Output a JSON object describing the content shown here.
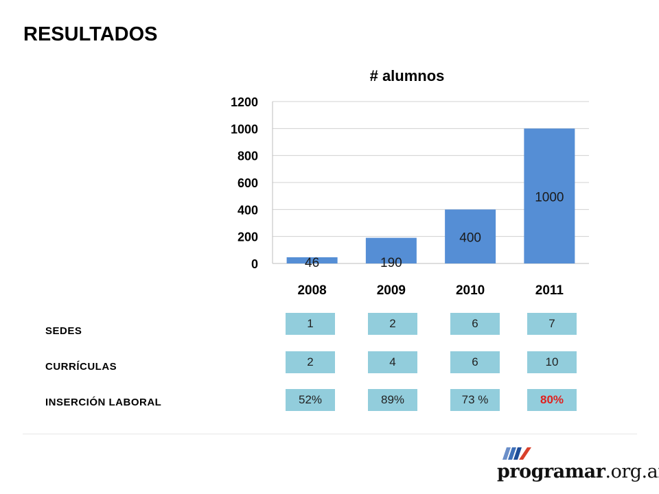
{
  "page": {
    "title": "RESULTADOS"
  },
  "chart_data": {
    "type": "bar",
    "title": "# alumnos",
    "categories": [
      "2008",
      "2009",
      "2010",
      "2011"
    ],
    "values": [
      46,
      190,
      400,
      1000
    ],
    "data_labels": [
      "46",
      "190",
      "400",
      "1000"
    ],
    "ylim": [
      0,
      1200
    ],
    "yticks": [
      "0",
      "200",
      "400",
      "600",
      "800",
      "1000",
      "1200"
    ],
    "ytick_values": [
      0,
      200,
      400,
      600,
      800,
      1000,
      1200
    ],
    "grid": true,
    "bar_color": "#558ed5"
  },
  "table": {
    "rows": [
      {
        "label": "SEDES",
        "values": [
          "1",
          "2",
          "6",
          "7"
        ]
      },
      {
        "label": "CURRÍCULAS",
        "values": [
          "2",
          "4",
          "6",
          "10"
        ]
      },
      {
        "label": "INSERCIÓN LABORAL",
        "values": [
          "52%",
          "89%",
          "73 %",
          "80%"
        ],
        "highlight_index": 3
      }
    ],
    "cell_color": "#92cddc",
    "highlight_color": "#e0201e"
  },
  "logo": {
    "brand": "programar",
    "suffix": ".org.ar"
  }
}
